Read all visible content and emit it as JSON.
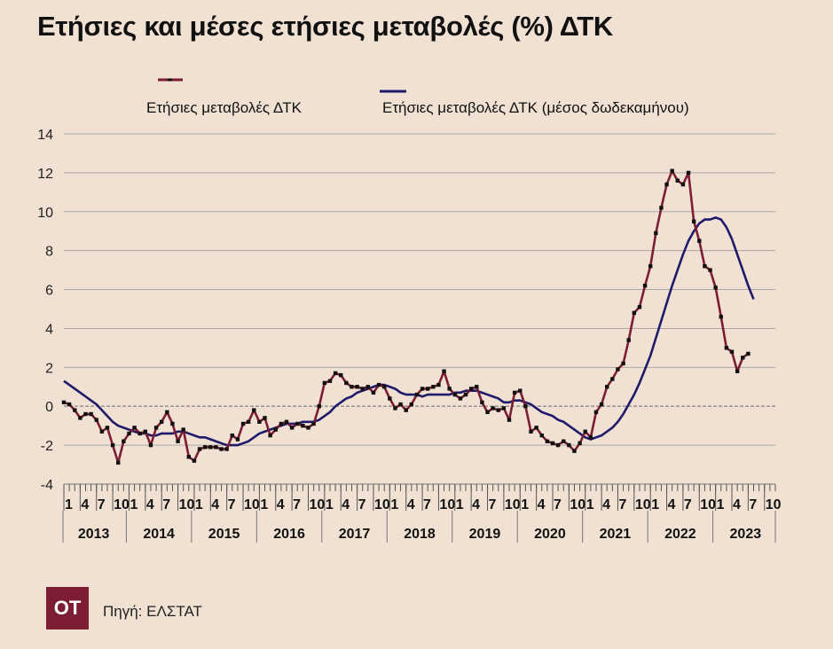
{
  "title": "Ετήσιες και μέσες ετήσιες μεταβολές (%) ΔΤΚ",
  "source": "Πηγή: ΕΛΣΤΑΤ",
  "logo": "OT",
  "chart_data": {
    "type": "line",
    "title": "Ετήσιες και μέσες ετήσιες μεταβολές (%) ΔΤΚ",
    "ylim": [
      -4,
      14
    ],
    "yticks": [
      -4,
      -2,
      0,
      2,
      4,
      6,
      8,
      10,
      12,
      14
    ],
    "grid": true,
    "legend_position": "top",
    "x_month_ticks": [
      "1",
      "4",
      "7",
      "10"
    ],
    "years": [
      "2013",
      "2014",
      "2015",
      "2016",
      "2017",
      "2018",
      "2019",
      "2020",
      "2021",
      "2022",
      "2023"
    ],
    "x_start": "2013-01",
    "series": [
      {
        "name": "Ετήσιες μεταβολές ΔΤΚ",
        "color": "#7d1d33",
        "marker_color": "#111111",
        "values": [
          0.2,
          0.1,
          -0.2,
          -0.6,
          -0.4,
          -0.4,
          -0.7,
          -1.3,
          -1.1,
          -2.0,
          -2.9,
          -1.8,
          -1.4,
          -1.1,
          -1.4,
          -1.3,
          -2.0,
          -1.1,
          -0.8,
          -0.3,
          -0.9,
          -1.8,
          -1.2,
          -2.6,
          -2.8,
          -2.2,
          -2.1,
          -2.1,
          -2.1,
          -2.2,
          -2.2,
          -1.5,
          -1.7,
          -0.9,
          -0.8,
          -0.2,
          -0.8,
          -0.6,
          -1.5,
          -1.2,
          -0.9,
          -0.8,
          -1.1,
          -0.9,
          -1.0,
          -1.1,
          -0.9,
          0.0,
          1.2,
          1.3,
          1.7,
          1.6,
          1.2,
          1.0,
          1.0,
          0.9,
          1.0,
          0.7,
          1.1,
          1.0,
          0.4,
          -0.1,
          0.1,
          -0.2,
          0.1,
          0.6,
          0.9,
          0.9,
          1.0,
          1.1,
          1.8,
          0.9,
          0.6,
          0.4,
          0.6,
          0.9,
          1.0,
          0.2,
          -0.3,
          -0.1,
          -0.2,
          -0.1,
          -0.7,
          0.7,
          0.8,
          0.0,
          -1.3,
          -1.1,
          -1.5,
          -1.8,
          -1.9,
          -2.0,
          -1.8,
          -2.0,
          -2.3,
          -1.9,
          -1.3,
          -1.6,
          -0.3,
          0.1,
          1.0,
          1.4,
          1.9,
          2.2,
          3.4,
          4.8,
          5.1,
          6.2,
          7.2,
          8.9,
          10.2,
          11.4,
          12.1,
          11.6,
          11.4,
          12.0,
          9.5,
          8.5,
          7.2,
          7.0,
          6.1,
          4.6,
          3.0,
          2.8,
          1.8,
          2.5,
          2.7
        ]
      },
      {
        "name": "Ετήσιες μεταβολές ΔΤΚ (μέσος δωδεκαμήνου)",
        "color": "#1f1a6b",
        "values": [
          1.3,
          1.1,
          0.9,
          0.7,
          0.5,
          0.3,
          0.1,
          -0.2,
          -0.5,
          -0.8,
          -1.0,
          -1.1,
          -1.2,
          -1.3,
          -1.4,
          -1.4,
          -1.5,
          -1.5,
          -1.4,
          -1.4,
          -1.4,
          -1.3,
          -1.3,
          -1.4,
          -1.5,
          -1.6,
          -1.6,
          -1.7,
          -1.8,
          -1.9,
          -2.0,
          -2.0,
          -2.0,
          -1.9,
          -1.8,
          -1.6,
          -1.4,
          -1.3,
          -1.2,
          -1.1,
          -1.0,
          -0.9,
          -0.9,
          -0.9,
          -0.8,
          -0.8,
          -0.8,
          -0.7,
          -0.5,
          -0.3,
          0.0,
          0.2,
          0.4,
          0.5,
          0.7,
          0.8,
          0.9,
          1.0,
          1.1,
          1.1,
          1.0,
          0.9,
          0.7,
          0.6,
          0.6,
          0.6,
          0.5,
          0.6,
          0.6,
          0.6,
          0.6,
          0.6,
          0.7,
          0.7,
          0.8,
          0.8,
          0.8,
          0.7,
          0.6,
          0.5,
          0.4,
          0.2,
          0.2,
          0.3,
          0.3,
          0.2,
          0.1,
          -0.1,
          -0.3,
          -0.4,
          -0.5,
          -0.7,
          -0.8,
          -1.0,
          -1.2,
          -1.4,
          -1.6,
          -1.7,
          -1.6,
          -1.5,
          -1.3,
          -1.1,
          -0.8,
          -0.4,
          0.1,
          0.6,
          1.2,
          1.9,
          2.6,
          3.5,
          4.4,
          5.3,
          6.2,
          7.0,
          7.8,
          8.5,
          9.0,
          9.4,
          9.6,
          9.6,
          9.7,
          9.6,
          9.2,
          8.6,
          7.8,
          7.0,
          6.2,
          5.5
        ]
      }
    ]
  }
}
